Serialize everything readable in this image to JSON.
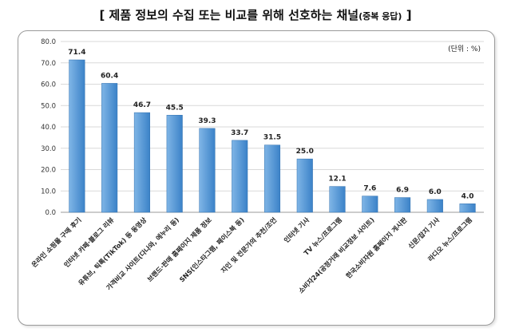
{
  "title": {
    "main": "[ 제품 정보의 수집 또는 비교를 위해 선호하는 채널",
    "sub": "(중복 응답)",
    "close": " ]"
  },
  "unit_label": "(단위 : %)",
  "colors": {
    "bar_top": "#7fb5e6",
    "bar_bottom": "#3b82c8",
    "grid": "#d9d9d9",
    "axis": "#999999"
  },
  "chart_data": {
    "type": "bar",
    "title": "[ 제품 정보의 수집 또는 비교를 위해 선호하는 채널(중복 응답) ]",
    "xlabel": "",
    "ylabel": "",
    "ylim": [
      0,
      80
    ],
    "yticks": [
      "0.0",
      "10.0",
      "20.0",
      "30.0",
      "40.0",
      "50.0",
      "60.0",
      "70.0",
      "80.0"
    ],
    "grid": true,
    "categories": [
      "온라인 쇼핑몰 구매 후기",
      "인터넷 카페·블로그 리뷰",
      "유튜브, 틱톡(TikTok) 등 동영상",
      "가격비교 사이트(다나와, 에누리 등)",
      "브랜드·판매 홈페이지 제품 정보",
      "SNS(인스타그램, 페이스북 등)",
      "지인 및 전문가의 추천/조언",
      "인터넷 기사",
      "TV 뉴스/프로그램",
      "소비자24(공정거래 비교정보 사이트)",
      "한국소비자원 홈페이지 게시판",
      "신문/잡지 기사",
      "라디오 뉴스/프로그램"
    ],
    "values": [
      71.4,
      60.4,
      46.7,
      45.5,
      39.3,
      33.7,
      31.5,
      25.0,
      12.1,
      7.6,
      6.9,
      6.0,
      4.0
    ],
    "value_labels": [
      "71.4",
      "60.4",
      "46.7",
      "45.5",
      "39.3",
      "33.7",
      "31.5",
      "25.0",
      "12.1",
      "7.6",
      "6.9",
      "6.0",
      "4.0"
    ]
  }
}
